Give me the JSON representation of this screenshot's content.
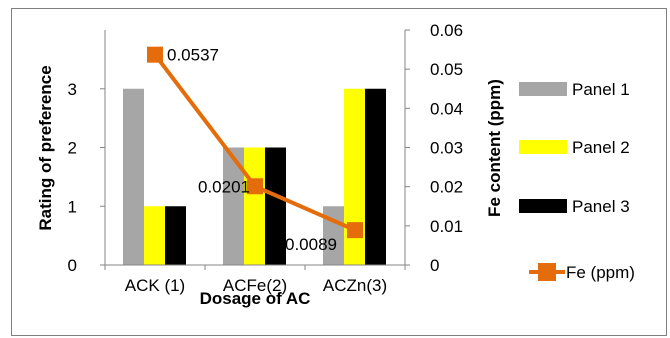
{
  "chart_data": {
    "type": "bar",
    "categories": [
      "ACK (1)",
      "ACFe(2)",
      "ACZn(3)"
    ],
    "xlabel": "Dosage of AC",
    "ylabel": "Rating of preference",
    "y2label": "Fe content (ppm)",
    "ylim": [
      0,
      4
    ],
    "y_ticks": [
      "0",
      "1",
      "2",
      "3"
    ],
    "y2lim": [
      0,
      0.06
    ],
    "y2_ticks": [
      "0",
      "0.01",
      "0.02",
      "0.03",
      "0.04",
      "0.05",
      "0.06"
    ],
    "grid": false,
    "legend_position": "right",
    "series": [
      {
        "name": "Panel 1",
        "type": "bar",
        "axis": "left",
        "color": "#a6a6a6",
        "values": [
          3,
          2,
          1
        ]
      },
      {
        "name": "Panel 2",
        "type": "bar",
        "axis": "left",
        "color": "#ffff00",
        "values": [
          1,
          2,
          3
        ]
      },
      {
        "name": "Panel 3",
        "type": "bar",
        "axis": "left",
        "color": "#000000",
        "values": [
          1,
          2,
          3
        ]
      },
      {
        "name": "Fe (ppm)",
        "type": "line",
        "axis": "right",
        "color": "#e46c0a",
        "marker": "square",
        "values": [
          0.0537,
          0.0201,
          0.0089
        ],
        "data_labels": [
          "0.0537",
          "0.0201",
          "0.0089"
        ]
      }
    ]
  }
}
